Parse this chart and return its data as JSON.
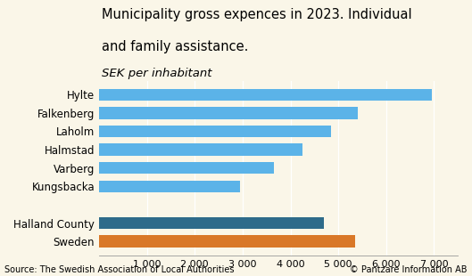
{
  "title_line1": "Municipality gross expences in 2023. Individual",
  "title_line2": "and family assistance.",
  "subtitle": "SEK per inhabitant",
  "categories": [
    "Hylte",
    "Falkenberg",
    "Laholm",
    "Halmstad",
    "Varberg",
    "Kungsbacka",
    "",
    "Halland County",
    "Sweden"
  ],
  "values": [
    6950,
    5400,
    4850,
    4250,
    3650,
    2950,
    0,
    4700,
    5350
  ],
  "bar_colors": [
    "#5bb3e8",
    "#5bb3e8",
    "#5bb3e8",
    "#5bb3e8",
    "#5bb3e8",
    "#5bb3e8",
    null,
    "#2e6b8a",
    "#d97828"
  ],
  "xlim": [
    0,
    7500
  ],
  "xticks": [
    1000,
    2000,
    3000,
    4000,
    5000,
    6000,
    7000
  ],
  "xtick_labels": [
    "1 000",
    "2 000",
    "3 000",
    "4 000",
    "5 000",
    "6 000",
    "7 000"
  ],
  "background_color": "#faf6e8",
  "source_left": "Source: The Swedish Association of Local Authorities",
  "source_right": "© Pantzare Information AB",
  "title_fontsize": 10.5,
  "subtitle_fontsize": 9.5,
  "label_fontsize": 8.5,
  "tick_fontsize": 8,
  "source_fontsize": 7
}
